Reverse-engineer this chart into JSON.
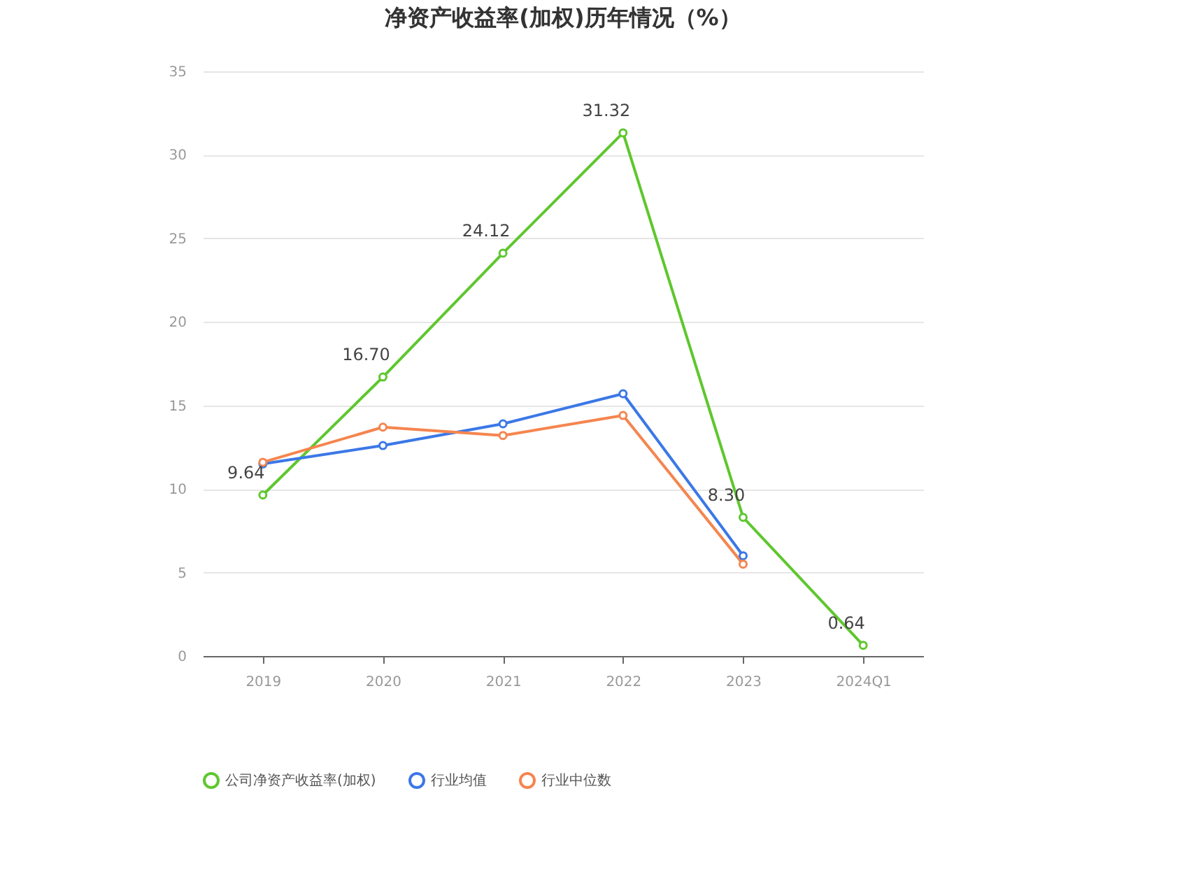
{
  "chart_data": {
    "type": "line",
    "title": "净资产收益率(加权)历年情况（%）",
    "categories": [
      "2019",
      "2020",
      "2021",
      "2022",
      "2023",
      "2024Q1"
    ],
    "series": [
      {
        "name": "公司净资产收益率(加权)",
        "color": "#5ec72e",
        "values": [
          9.64,
          16.7,
          24.12,
          31.32,
          8.3,
          0.64
        ],
        "value_labels": [
          "9.64",
          "16.70",
          "24.12",
          "31.32",
          "8.30",
          "0.64"
        ]
      },
      {
        "name": "行业均值",
        "color": "#3b78e7",
        "values": [
          11.5,
          12.6,
          13.9,
          15.7,
          6.0,
          null
        ]
      },
      {
        "name": "行业中位数",
        "color": "#f5854f",
        "values": [
          11.6,
          13.7,
          13.2,
          14.4,
          5.5,
          null
        ]
      }
    ],
    "ylim": [
      0,
      35
    ],
    "yticks": [
      0,
      5,
      10,
      15,
      20,
      25,
      30,
      35
    ],
    "grid": "y",
    "legend": "bottom",
    "marker": "circle",
    "line_style": "solid"
  }
}
